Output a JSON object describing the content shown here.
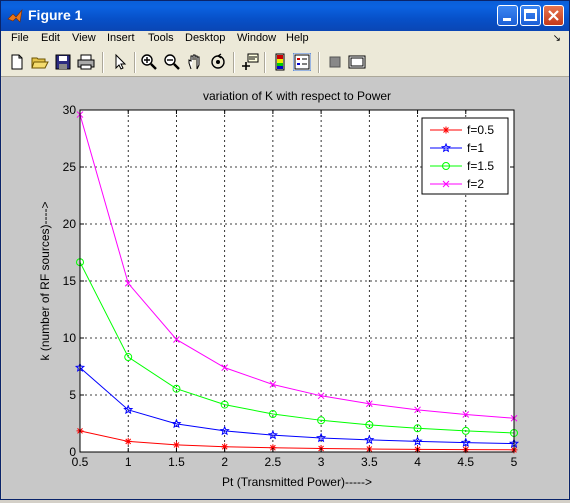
{
  "window": {
    "title": "Figure 1",
    "buttons": [
      "minimize",
      "maximize",
      "close"
    ]
  },
  "menu": {
    "items": [
      "File",
      "Edit",
      "View",
      "Insert",
      "Tools",
      "Desktop",
      "Window",
      "Help"
    ],
    "dock_arrow": "↘"
  },
  "toolbar": {
    "icons": [
      "new-file-icon",
      "open-folder-icon",
      "save-icon",
      "print-icon",
      "select-arrow-icon",
      "zoom-in-icon",
      "zoom-out-icon",
      "pan-hand-icon",
      "rotate-3d-icon",
      "data-cursor-icon",
      "colorbar-icon",
      "legend-icon",
      "hide-plot-tools-icon",
      "show-plot-tools-icon"
    ]
  },
  "chart_data": {
    "type": "line",
    "title": "variation of K with respect to Power",
    "xlabel": "Pt (Transmitted Power)----->",
    "ylabel": "k (number of RF sources)---->",
    "xlim": [
      0.5,
      5
    ],
    "ylim": [
      0,
      30
    ],
    "xticks": [
      0.5,
      1,
      1.5,
      2,
      2.5,
      3,
      3.5,
      4,
      4.5,
      5
    ],
    "xtick_labels": [
      "0.5",
      "1",
      "1.5",
      "2",
      "2.5",
      "3",
      "3.5",
      "4",
      "4.5",
      "5"
    ],
    "yticks": [
      0,
      5,
      10,
      15,
      20,
      25,
      30
    ],
    "ytick_labels": [
      "0",
      "5",
      "10",
      "15",
      "20",
      "25",
      "30"
    ],
    "grid": true,
    "legend_position": "top-right",
    "x": [
      0.5,
      1,
      1.5,
      2,
      2.5,
      3,
      3.5,
      4,
      4.5,
      5
    ],
    "series": [
      {
        "name": "f=0.5",
        "color": "#ff0000",
        "marker": "star",
        "values": [
          1.85,
          0.93,
          0.62,
          0.46,
          0.37,
          0.31,
          0.26,
          0.23,
          0.21,
          0.19
        ]
      },
      {
        "name": "f=1",
        "color": "#0000ff",
        "marker": "star-open",
        "values": [
          7.4,
          3.7,
          2.47,
          1.85,
          1.48,
          1.23,
          1.06,
          0.93,
          0.82,
          0.74
        ]
      },
      {
        "name": "f=1.5",
        "color": "#00ff00",
        "marker": "circle",
        "values": [
          16.65,
          8.33,
          5.55,
          4.16,
          3.33,
          2.78,
          2.38,
          2.08,
          1.85,
          1.67
        ]
      },
      {
        "name": "f=2",
        "color": "#ff00ff",
        "marker": "x",
        "values": [
          29.6,
          14.8,
          9.87,
          7.4,
          5.92,
          4.93,
          4.23,
          3.7,
          3.29,
          2.96
        ]
      }
    ]
  }
}
